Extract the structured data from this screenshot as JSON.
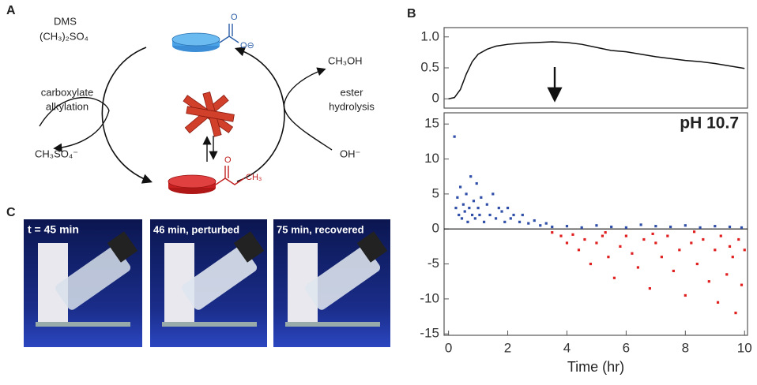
{
  "figure": {
    "panel_labels": [
      "A",
      "B",
      "C"
    ],
    "scheme": {
      "reagent": "DMS",
      "reagent_formula": "(CH₃)₂SO₄",
      "left_reaction": [
        "carboxylate",
        "alkylation"
      ],
      "left_product": "CH₃SO₄⁻",
      "right_product": "CH₃OH",
      "right_reaction": [
        "ester",
        "hydrolysis"
      ],
      "right_reagent": "OH⁻",
      "carboxylate_atoms": [
        "O",
        "O⊖"
      ],
      "ester_atoms": [
        "O",
        "CH₃"
      ]
    },
    "photos": [
      "t = 45 min",
      "46 min, perturbed",
      "75 min, recovered"
    ]
  },
  "chart_data": [
    {
      "type": "line",
      "x": [
        0,
        0.2,
        0.4,
        0.6,
        0.8,
        1,
        1.3,
        1.6,
        2,
        2.5,
        3,
        3.5,
        4,
        4.5,
        5,
        5.5,
        6,
        6.5,
        7,
        7.5,
        8,
        8.5,
        9,
        9.5,
        10
      ],
      "series": [
        {
          "color": "#111111",
          "values": [
            0,
            0.02,
            0.15,
            0.4,
            0.6,
            0.72,
            0.8,
            0.85,
            0.88,
            0.9,
            0.91,
            0.92,
            0.91,
            0.88,
            0.83,
            0.78,
            0.76,
            0.72,
            0.68,
            0.65,
            0.62,
            0.6,
            0.57,
            0.53,
            0.49
          ]
        }
      ],
      "xlim": [
        -0.15,
        10.1
      ],
      "ylim": [
        -0.15,
        1.15
      ],
      "yticks": [
        0,
        0.5,
        {
          "value": 1,
          "label": "1.0"
        }
      ]
    },
    {
      "type": "scatter",
      "annotation": "pH 10.7",
      "xlabel": "Time (hr)",
      "series": [
        {
          "color": "#2f4fa8",
          "x": [
            0.2,
            0.25,
            0.3,
            0.35,
            0.4,
            0.45,
            0.5,
            0.55,
            0.6,
            0.65,
            0.7,
            0.75,
            0.8,
            0.85,
            0.9,
            0.95,
            1.0,
            1.05,
            1.1,
            1.2,
            1.3,
            1.4,
            1.5,
            1.6,
            1.7,
            1.8,
            1.9,
            2.0,
            2.1,
            2.2,
            2.4,
            2.5,
            2.7,
            2.9,
            3.1,
            3.3,
            3.5,
            4.0,
            4.5,
            5.0,
            5.5,
            6.0,
            6.5,
            7.0,
            7.5,
            8.0,
            8.5,
            9.0,
            9.5,
            9.9
          ],
          "values": [
            13.2,
            3,
            4.5,
            2,
            6,
            1.5,
            3.5,
            2.5,
            5,
            1,
            3,
            7.5,
            2,
            4,
            1.5,
            6.5,
            3,
            2,
            4.5,
            1,
            3.5,
            2,
            5,
            1.5,
            3,
            2.5,
            1,
            3,
            1.5,
            2,
            1,
            2,
            0.8,
            1.2,
            0.5,
            0.8,
            0.3,
            0.4,
            0.2,
            0.5,
            0.3,
            0.2,
            0.6,
            0.4,
            0.3,
            0.5,
            0.2,
            0.4,
            0.3,
            0.2
          ]
        },
        {
          "color": "#e02020",
          "x": [
            3.5,
            3.8,
            4.0,
            4.2,
            4.4,
            4.6,
            4.8,
            5.0,
            5.2,
            5.4,
            5.6,
            5.8,
            6.0,
            6.2,
            6.4,
            6.6,
            6.8,
            7.0,
            7.2,
            7.4,
            7.6,
            7.8,
            8.0,
            8.2,
            8.4,
            8.6,
            8.8,
            9.0,
            9.1,
            9.2,
            9.4,
            9.5,
            9.6,
            9.7,
            9.8,
            9.9,
            10.0,
            5.3,
            6.9,
            8.3
          ],
          "values": [
            -0.5,
            -1,
            -2,
            -0.8,
            -3,
            -1.5,
            -5,
            -2,
            -1,
            -4,
            -7,
            -2.5,
            -1,
            -3.5,
            -5.5,
            -1.5,
            -8.5,
            -2,
            -4,
            -1,
            -6,
            -3,
            -9.5,
            -2,
            -5,
            -1.5,
            -7.5,
            -3,
            -10.5,
            -1,
            -6.5,
            -2.5,
            -4,
            -12,
            -1.5,
            -8,
            -3,
            -0.5,
            -0.7,
            -0.4
          ]
        }
      ],
      "xlim": [
        -0.15,
        10.1
      ],
      "ylim": [
        -15.2,
        16.6
      ],
      "xticks": [
        0,
        2,
        4,
        6,
        8,
        10
      ],
      "yticks": [
        -15,
        -10,
        -5,
        0,
        5,
        10,
        15
      ]
    }
  ]
}
